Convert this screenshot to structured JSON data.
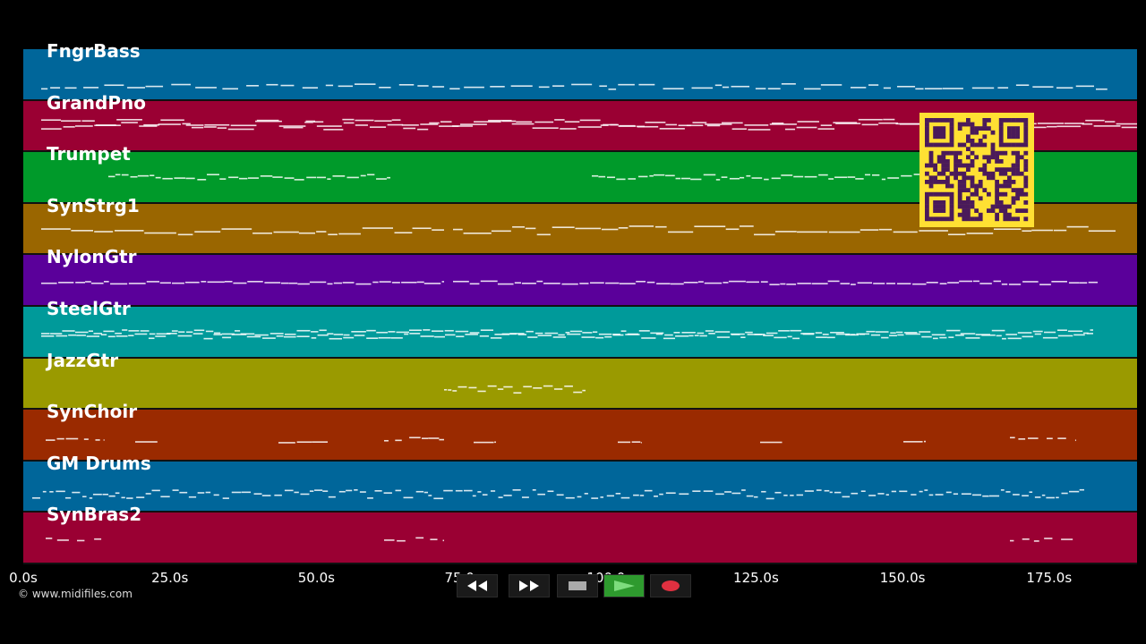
{
  "tracks": [
    {
      "name": "FngrBass",
      "color": "#00669a"
    },
    {
      "name": "GrandPno",
      "color": "#9a0033"
    },
    {
      "name": "Trumpet",
      "color": "#009a2a"
    },
    {
      "name": "SynStrg1",
      "color": "#9a6600"
    },
    {
      "name": "NylonGtr",
      "color": "#5a009a"
    },
    {
      "name": "SteelGtr",
      "color": "#009a9a"
    },
    {
      "name": "JazzGtr",
      "color": "#9a9a00"
    },
    {
      "name": "SynChoir",
      "color": "#9a2a00"
    },
    {
      "name": "GM Drums",
      "color": "#00669a"
    },
    {
      "name": "SynBras2",
      "color": "#9a0033"
    }
  ],
  "axis": {
    "ticks": [
      "0.0s",
      "25.0s",
      "50.0s",
      "75.0s",
      "100.0s",
      "125.0s",
      "150.0s",
      "175.0s"
    ],
    "tick_values": [
      0,
      25,
      50,
      75,
      100,
      125,
      150,
      175
    ],
    "max_seconds": 190
  },
  "copyright": "© www.midifiles.com",
  "transport": {
    "rewind_icon": "rewind-icon",
    "fast_forward_icon": "fast-forward-icon",
    "stop_icon": "stop-icon",
    "play_icon": "play-icon",
    "record_icon": "record-icon",
    "play_color": "#2e9a2e",
    "record_color": "#e03040"
  },
  "qr_color": "#ffe033"
}
